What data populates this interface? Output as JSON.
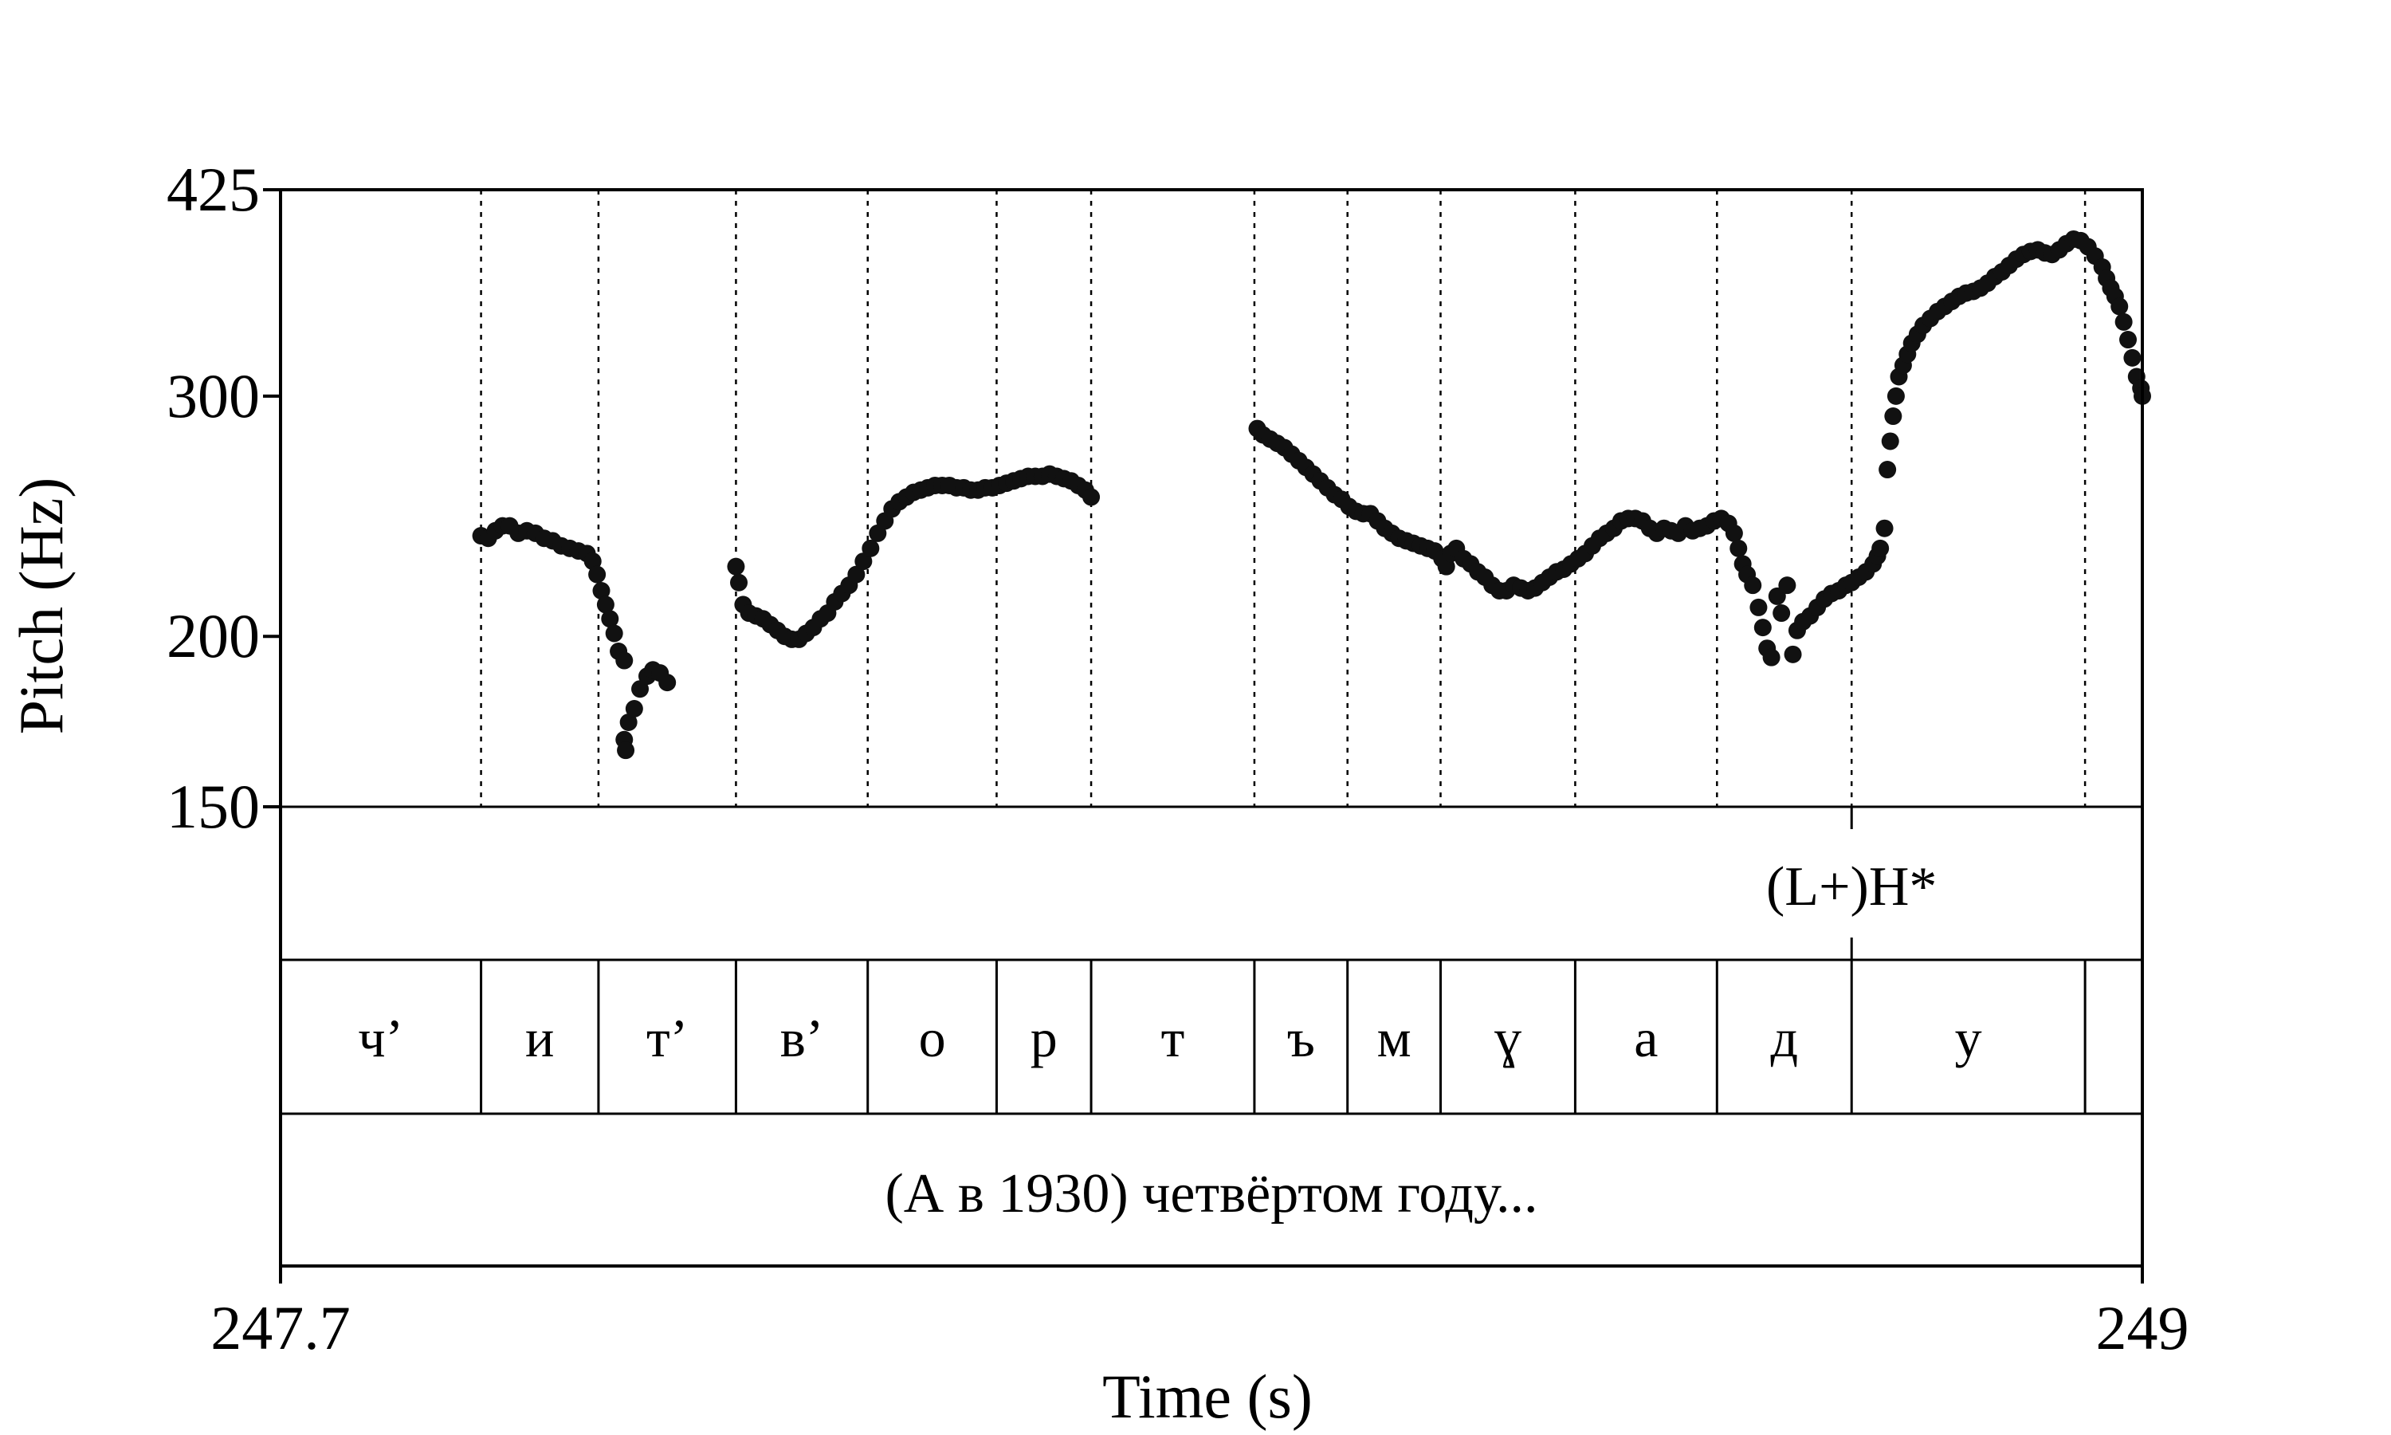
{
  "chart_data": {
    "type": "scatter",
    "xlabel": "Time (s)",
    "ylabel": "Pitch (Hz)",
    "xlim": [
      247.7,
      249
    ],
    "ylim": [
      150,
      425
    ],
    "y_scale": "log",
    "x_ticks": [
      {
        "value": 247.7,
        "label": "247.7"
      },
      {
        "value": 249,
        "label": "249"
      }
    ],
    "y_ticks": [
      {
        "value": 425,
        "label": "425"
      },
      {
        "value": 300,
        "label": "300"
      },
      {
        "value": 200,
        "label": "200"
      },
      {
        "value": 150,
        "label": "150"
      }
    ],
    "grid": "dotted vertical lines at segment boundaries",
    "segment_boundaries": [
      247.84,
      247.922,
      248.018,
      248.11,
      248.2,
      248.266,
      248.38,
      248.445,
      248.51,
      248.604,
      248.703,
      248.797,
      248.96
    ],
    "segments": [
      {
        "label": "ч’",
        "start": 247.7,
        "end": 247.84
      },
      {
        "label": "и",
        "start": 247.84,
        "end": 247.922
      },
      {
        "label": "т’",
        "start": 247.922,
        "end": 248.018
      },
      {
        "label": "в’",
        "start": 248.018,
        "end": 248.11
      },
      {
        "label": "о",
        "start": 248.11,
        "end": 248.2
      },
      {
        "label": "р",
        "start": 248.2,
        "end": 248.266
      },
      {
        "label": "т",
        "start": 248.266,
        "end": 248.38
      },
      {
        "label": "ъ",
        "start": 248.38,
        "end": 248.445
      },
      {
        "label": "м",
        "start": 248.445,
        "end": 248.51
      },
      {
        "label": "ɣ",
        "start": 248.51,
        "end": 248.604
      },
      {
        "label": "а",
        "start": 248.604,
        "end": 248.703
      },
      {
        "label": "д",
        "start": 248.703,
        "end": 248.797
      },
      {
        "label": "у",
        "start": 248.797,
        "end": 248.96
      }
    ],
    "tones": [
      {
        "label": "(L+)H*",
        "time": 248.797
      }
    ],
    "sentence": "(А в 1930) четвёртом году...",
    "series": [
      {
        "points": [
          [
            247.84,
            237
          ],
          [
            247.845,
            236
          ],
          [
            247.85,
            239
          ],
          [
            247.855,
            241
          ],
          [
            247.86,
            241
          ],
          [
            247.866,
            238
          ],
          [
            247.872,
            239
          ],
          [
            247.878,
            238
          ],
          [
            247.884,
            236
          ],
          [
            247.89,
            235
          ],
          [
            247.896,
            233
          ],
          [
            247.902,
            232
          ],
          [
            247.908,
            231
          ],
          [
            247.914,
            230
          ],
          [
            247.918,
            227
          ],
          [
            247.921,
            222
          ],
          [
            247.924,
            216
          ],
          [
            247.927,
            211
          ],
          [
            247.93,
            206
          ],
          [
            247.933,
            201
          ],
          [
            247.936,
            195
          ],
          [
            247.94,
            192
          ],
          [
            247.94,
            168
          ],
          [
            247.941,
            165
          ],
          [
            247.943,
            173
          ],
          [
            247.947,
            177
          ],
          [
            247.951,
            183
          ],
          [
            247.956,
            187
          ],
          [
            247.96,
            189
          ],
          [
            247.965,
            188
          ],
          [
            247.97,
            185
          ],
          [
            248.018,
            225
          ],
          [
            248.02,
            219
          ],
          [
            248.023,
            211
          ],
          [
            248.027,
            208
          ],
          [
            248.032,
            207
          ],
          [
            248.037,
            206
          ],
          [
            248.042,
            204
          ],
          [
            248.047,
            202
          ],
          [
            248.052,
            200
          ],
          [
            248.057,
            199
          ],
          [
            248.062,
            199
          ],
          [
            248.067,
            201
          ],
          [
            248.072,
            203
          ],
          [
            248.077,
            206
          ],
          [
            248.082,
            208
          ],
          [
            248.087,
            212
          ],
          [
            248.092,
            215
          ],
          [
            248.097,
            218
          ],
          [
            248.102,
            222
          ],
          [
            248.107,
            227
          ],
          [
            248.112,
            232
          ],
          [
            248.117,
            238
          ],
          [
            248.122,
            243
          ],
          [
            248.127,
            248
          ],
          [
            248.132,
            251
          ],
          [
            248.137,
            253
          ],
          [
            248.142,
            255
          ],
          [
            248.147,
            256
          ],
          [
            248.152,
            257
          ],
          [
            248.157,
            258
          ],
          [
            248.162,
            258
          ],
          [
            248.167,
            258
          ],
          [
            248.172,
            257
          ],
          [
            248.177,
            257
          ],
          [
            248.182,
            256
          ],
          [
            248.187,
            256
          ],
          [
            248.192,
            257
          ],
          [
            248.197,
            257
          ],
          [
            248.202,
            258
          ],
          [
            248.207,
            259
          ],
          [
            248.212,
            260
          ],
          [
            248.217,
            261
          ],
          [
            248.222,
            262
          ],
          [
            248.227,
            262
          ],
          [
            248.232,
            262
          ],
          [
            248.237,
            263
          ],
          [
            248.242,
            262
          ],
          [
            248.247,
            261
          ],
          [
            248.252,
            260
          ],
          [
            248.257,
            258
          ],
          [
            248.262,
            256
          ],
          [
            248.266,
            253
          ],
          [
            248.382,
            284
          ],
          [
            248.386,
            281
          ],
          [
            248.391,
            279
          ],
          [
            248.396,
            277
          ],
          [
            248.401,
            275
          ],
          [
            248.406,
            272
          ],
          [
            248.411,
            269
          ],
          [
            248.416,
            266
          ],
          [
            248.421,
            263
          ],
          [
            248.426,
            260
          ],
          [
            248.431,
            257
          ],
          [
            248.436,
            254
          ],
          [
            248.441,
            252
          ],
          [
            248.446,
            249
          ],
          [
            248.451,
            247
          ],
          [
            248.456,
            246
          ],
          [
            248.461,
            246
          ],
          [
            248.466,
            243
          ],
          [
            248.471,
            240
          ],
          [
            248.476,
            238
          ],
          [
            248.481,
            236
          ],
          [
            248.486,
            235
          ],
          [
            248.491,
            234
          ],
          [
            248.496,
            233
          ],
          [
            248.501,
            232
          ],
          [
            248.506,
            231
          ],
          [
            248.511,
            228
          ],
          [
            248.514,
            225
          ],
          [
            248.517,
            230
          ],
          [
            248.521,
            232
          ],
          [
            248.526,
            228
          ],
          [
            248.531,
            226
          ],
          [
            248.536,
            223
          ],
          [
            248.541,
            221
          ],
          [
            248.546,
            218
          ],
          [
            248.551,
            216
          ],
          [
            248.556,
            216
          ],
          [
            248.561,
            218
          ],
          [
            248.566,
            217
          ],
          [
            248.571,
            216
          ],
          [
            248.576,
            217
          ],
          [
            248.581,
            219
          ],
          [
            248.586,
            221
          ],
          [
            248.591,
            223
          ],
          [
            248.596,
            224
          ],
          [
            248.601,
            226
          ],
          [
            248.606,
            228
          ],
          [
            248.611,
            230
          ],
          [
            248.616,
            233
          ],
          [
            248.621,
            236
          ],
          [
            248.626,
            238
          ],
          [
            248.631,
            240
          ],
          [
            248.636,
            243
          ],
          [
            248.641,
            244
          ],
          [
            248.646,
            244
          ],
          [
            248.651,
            243
          ],
          [
            248.656,
            240
          ],
          [
            248.661,
            238
          ],
          [
            248.666,
            240
          ],
          [
            248.671,
            239
          ],
          [
            248.676,
            238
          ],
          [
            248.681,
            241
          ],
          [
            248.686,
            239
          ],
          [
            248.691,
            240
          ],
          [
            248.696,
            241
          ],
          [
            248.701,
            243
          ],
          [
            248.706,
            244
          ],
          [
            248.711,
            242
          ],
          [
            248.715,
            238
          ],
          [
            248.718,
            232
          ],
          [
            248.721,
            226
          ],
          [
            248.724,
            222
          ],
          [
            248.728,
            218
          ],
          [
            248.732,
            210
          ],
          [
            248.735,
            203
          ],
          [
            248.738,
            196
          ],
          [
            248.741,
            193
          ],
          [
            248.745,
            214
          ],
          [
            248.748,
            208
          ],
          [
            248.752,
            218
          ],
          [
            248.756,
            194
          ],
          [
            248.759,
            202
          ],
          [
            248.763,
            205
          ],
          [
            248.768,
            207
          ],
          [
            248.773,
            210
          ],
          [
            248.778,
            213
          ],
          [
            248.783,
            215
          ],
          [
            248.788,
            216
          ],
          [
            248.793,
            218
          ],
          [
            248.797,
            219
          ],
          [
            248.802,
            221
          ],
          [
            248.807,
            223
          ],
          [
            248.812,
            226
          ],
          [
            248.815,
            229
          ],
          [
            248.817,
            232
          ],
          [
            248.82,
            240
          ],
          [
            248.822,
            265
          ],
          [
            248.824,
            278
          ],
          [
            248.826,
            290
          ],
          [
            248.828,
            300
          ],
          [
            248.83,
            310
          ],
          [
            248.833,
            316
          ],
          [
            248.836,
            322
          ],
          [
            248.839,
            328
          ],
          [
            248.843,
            333
          ],
          [
            248.847,
            338
          ],
          [
            248.852,
            342
          ],
          [
            248.857,
            346
          ],
          [
            248.862,
            349
          ],
          [
            248.867,
            352
          ],
          [
            248.872,
            355
          ],
          [
            248.877,
            357
          ],
          [
            248.882,
            358
          ],
          [
            248.887,
            360
          ],
          [
            248.892,
            363
          ],
          [
            248.897,
            367
          ],
          [
            248.902,
            370
          ],
          [
            248.907,
            374
          ],
          [
            248.912,
            378
          ],
          [
            248.917,
            381
          ],
          [
            248.922,
            383
          ],
          [
            248.927,
            384
          ],
          [
            248.932,
            382
          ],
          [
            248.937,
            381
          ],
          [
            248.942,
            384
          ],
          [
            248.947,
            388
          ],
          [
            248.952,
            391
          ],
          [
            248.957,
            390
          ],
          [
            248.962,
            386
          ],
          [
            248.967,
            380
          ],
          [
            248.972,
            373
          ],
          [
            248.975,
            366
          ],
          [
            248.978,
            360
          ],
          [
            248.981,
            355
          ],
          [
            248.984,
            349
          ],
          [
            248.987,
            340
          ],
          [
            248.99,
            330
          ],
          [
            248.993,
            320
          ],
          [
            248.996,
            310
          ],
          [
            248.999,
            304
          ],
          [
            249.0,
            300
          ]
        ]
      }
    ]
  }
}
